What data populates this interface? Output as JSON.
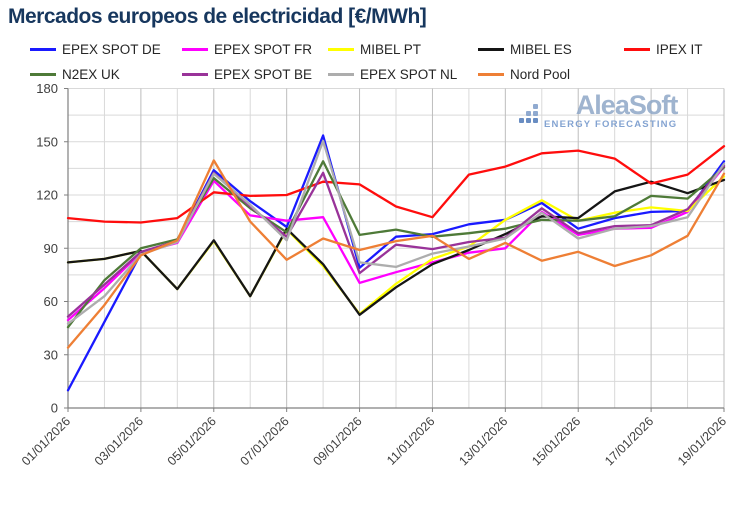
{
  "title": "Mercados europeos de electricidad [€/MWh]",
  "watermark": {
    "brand": "AleaSoft",
    "tagline": "ENERGY FORECASTING"
  },
  "legend": [
    {
      "label": "EPEX SPOT DE",
      "color": "#1a1aff"
    },
    {
      "label": "EPEX SPOT FR",
      "color": "#ff00ff"
    },
    {
      "label": "MIBEL PT",
      "color": "#ffff00"
    },
    {
      "label": "MIBEL ES",
      "color": "#151515"
    },
    {
      "label": "IPEX IT",
      "color": "#ff0d0d"
    },
    {
      "label": "N2EX UK",
      "color": "#4e7a38"
    },
    {
      "label": "EPEX SPOT BE",
      "color": "#993399"
    },
    {
      "label": "EPEX SPOT NL",
      "color": "#adadad"
    },
    {
      "label": "Nord Pool",
      "color": "#ee7f35"
    }
  ],
  "chart_data": {
    "type": "line",
    "x": [
      "01/01/2026",
      "02/01/2026",
      "03/01/2026",
      "04/01/2026",
      "05/01/2026",
      "06/01/2026",
      "07/01/2026",
      "08/01/2026",
      "09/01/2026",
      "10/01/2026",
      "11/01/2026",
      "12/01/2026",
      "13/01/2026",
      "14/01/2026",
      "15/01/2026",
      "16/01/2026",
      "17/01/2026",
      "18/01/2026",
      "19/01/2026"
    ],
    "x_tick_labels": [
      "01/01/2026",
      "03/01/2026",
      "05/01/2026",
      "07/01/2026",
      "09/01/2026",
      "11/01/2026",
      "13/01/2026",
      "15/01/2026",
      "17/01/2026",
      "19/01/2026"
    ],
    "ylim": [
      0,
      180
    ],
    "y_ticks": [
      0,
      30,
      60,
      90,
      120,
      150,
      180
    ],
    "grid": {
      "horizontal_step": 15,
      "vertical_step_days": 1,
      "color": "#d9d9d9",
      "labeled_vertical_color": "#bdbdbd"
    },
    "legend_position": "top",
    "series": [
      {
        "name": "EPEX SPOT DE",
        "color": "#1a1aff",
        "values": [
          10,
          48.5,
          87,
          94,
          134,
          116.5,
          102,
          153.5,
          79,
          96.5,
          98,
          103.5,
          106,
          115.5,
          101,
          107,
          110.5,
          111,
          139
        ]
      },
      {
        "name": "EPEX SPOT FR",
        "color": "#ff00ff",
        "values": [
          49.5,
          67.5,
          87.5,
          93,
          128,
          108.5,
          105.5,
          107.5,
          70.5,
          76.5,
          82,
          87.5,
          90,
          110.5,
          97.5,
          101,
          101.5,
          110.5,
          136
        ]
      },
      {
        "name": "MIBEL PT",
        "color": "#ffff00",
        "values": [
          82,
          84,
          88.5,
          67,
          94,
          63,
          100.5,
          80,
          53,
          70,
          84,
          91,
          106,
          117,
          105.5,
          110,
          113,
          111,
          130.5
        ]
      },
      {
        "name": "MIBEL ES",
        "color": "#151515",
        "values": [
          82,
          84,
          88.5,
          67,
          94.5,
          63,
          101,
          81,
          52.5,
          68,
          81,
          89,
          98,
          108,
          107,
          122,
          127.5,
          121,
          128.5
        ]
      },
      {
        "name": "IPEX IT",
        "color": "#ff0d0d",
        "values": [
          107,
          105,
          104.5,
          107,
          121.5,
          119.5,
          120,
          127.5,
          126,
          113.5,
          107.5,
          131.5,
          136,
          143.5,
          145,
          140.5,
          126.5,
          131.5,
          147.5
        ]
      },
      {
        "name": "N2EX UK",
        "color": "#4e7a38",
        "values": [
          45.5,
          72,
          90,
          95,
          129.5,
          112.5,
          99,
          139,
          97.5,
          100.5,
          96.5,
          98.5,
          101,
          106,
          105.5,
          108,
          119.5,
          118,
          135.5
        ]
      },
      {
        "name": "EPEX SPOT BE",
        "color": "#993399",
        "values": [
          51.5,
          69.5,
          88,
          94,
          132.5,
          113.5,
          96.5,
          132.5,
          76,
          92,
          89.5,
          93.5,
          96,
          112.5,
          98.5,
          102.5,
          103,
          112,
          136.5
        ]
      },
      {
        "name": "EPEX SPOT NL",
        "color": "#adadad",
        "values": [
          47.5,
          63,
          86.5,
          93.5,
          132,
          114.5,
          94.5,
          150.5,
          82,
          79.5,
          87,
          91,
          95.5,
          110,
          95.5,
          101,
          102.5,
          107.5,
          137.5
        ]
      },
      {
        "name": "Nord Pool",
        "color": "#ee7f35",
        "values": [
          34,
          58,
          86,
          94.5,
          139.5,
          105,
          83.5,
          95.5,
          89,
          94,
          97,
          84,
          93,
          83,
          88,
          80,
          86,
          97,
          132
        ]
      }
    ]
  }
}
